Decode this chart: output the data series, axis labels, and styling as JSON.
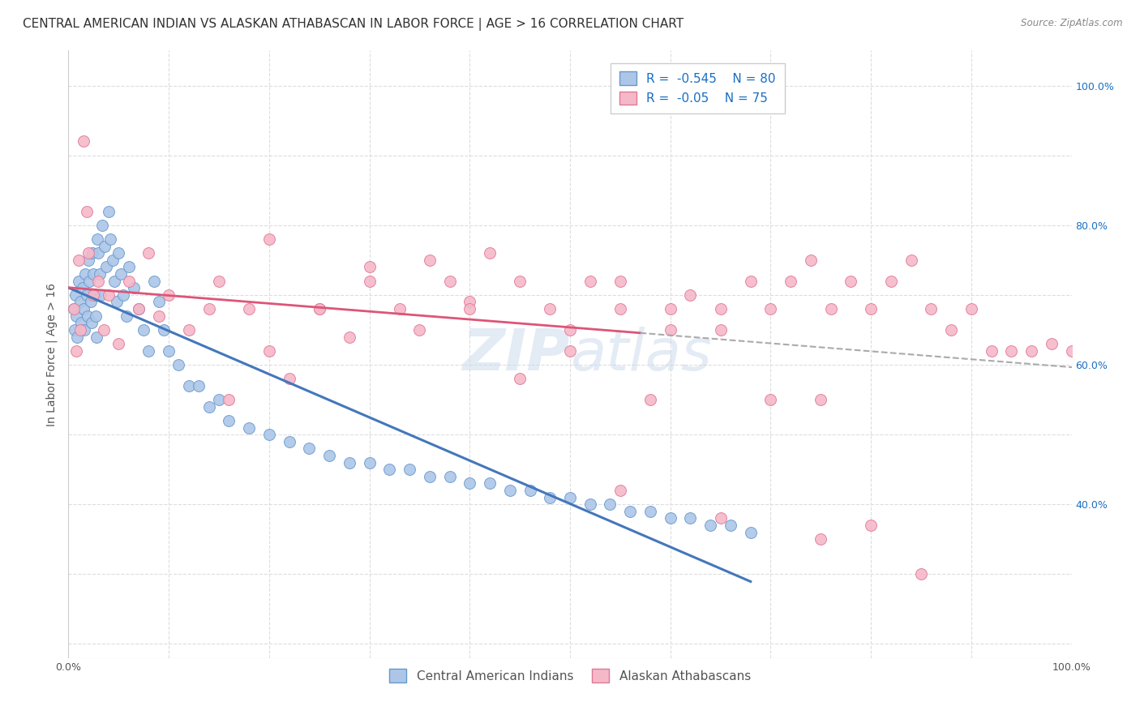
{
  "title": "CENTRAL AMERICAN INDIAN VS ALASKAN ATHABASCAN IN LABOR FORCE | AGE > 16 CORRELATION CHART",
  "source": "Source: ZipAtlas.com",
  "ylabel": "In Labor Force | Age > 16",
  "xlim": [
    0.0,
    1.0
  ],
  "ylim": [
    0.18,
    1.05
  ],
  "R_blue": -0.545,
  "N_blue": 80,
  "R_pink": -0.05,
  "N_pink": 75,
  "color_blue_fill": "#adc6e8",
  "color_blue_edge": "#6699cc",
  "color_pink_fill": "#f5b8c8",
  "color_pink_edge": "#e07898",
  "color_blue_line": "#4477bb",
  "color_pink_line": "#dd5577",
  "color_dash_line": "#aaaaaa",
  "watermark": "ZIPatlas",
  "background_color": "#ffffff",
  "grid_color": "#dddddd",
  "title_fontsize": 11,
  "axis_fontsize": 10,
  "tick_fontsize": 9,
  "legend_fontsize": 11,
  "blue_x": [
    0.005,
    0.006,
    0.007,
    0.008,
    0.009,
    0.01,
    0.012,
    0.013,
    0.014,
    0.015,
    0.016,
    0.017,
    0.018,
    0.019,
    0.02,
    0.021,
    0.022,
    0.023,
    0.024,
    0.025,
    0.026,
    0.027,
    0.028,
    0.029,
    0.03,
    0.031,
    0.032,
    0.034,
    0.036,
    0.038,
    0.04,
    0.042,
    0.044,
    0.046,
    0.048,
    0.05,
    0.052,
    0.055,
    0.058,
    0.06,
    0.065,
    0.07,
    0.075,
    0.08,
    0.085,
    0.09,
    0.095,
    0.1,
    0.11,
    0.12,
    0.13,
    0.14,
    0.15,
    0.16,
    0.18,
    0.2,
    0.22,
    0.24,
    0.26,
    0.28,
    0.3,
    0.32,
    0.34,
    0.36,
    0.38,
    0.4,
    0.42,
    0.44,
    0.46,
    0.48,
    0.5,
    0.52,
    0.54,
    0.56,
    0.58,
    0.6,
    0.62,
    0.64,
    0.66,
    0.68
  ],
  "blue_y": [
    0.68,
    0.65,
    0.7,
    0.67,
    0.64,
    0.72,
    0.69,
    0.66,
    0.71,
    0.68,
    0.65,
    0.73,
    0.7,
    0.67,
    0.75,
    0.72,
    0.69,
    0.66,
    0.76,
    0.73,
    0.7,
    0.67,
    0.64,
    0.78,
    0.76,
    0.73,
    0.7,
    0.8,
    0.77,
    0.74,
    0.82,
    0.78,
    0.75,
    0.72,
    0.69,
    0.76,
    0.73,
    0.7,
    0.67,
    0.74,
    0.71,
    0.68,
    0.65,
    0.62,
    0.72,
    0.69,
    0.65,
    0.62,
    0.6,
    0.57,
    0.57,
    0.54,
    0.55,
    0.52,
    0.51,
    0.5,
    0.49,
    0.48,
    0.47,
    0.46,
    0.46,
    0.45,
    0.45,
    0.44,
    0.44,
    0.43,
    0.43,
    0.42,
    0.42,
    0.41,
    0.41,
    0.4,
    0.4,
    0.39,
    0.39,
    0.38,
    0.38,
    0.37,
    0.37,
    0.36
  ],
  "pink_x": [
    0.005,
    0.008,
    0.01,
    0.012,
    0.015,
    0.018,
    0.02,
    0.025,
    0.03,
    0.035,
    0.04,
    0.05,
    0.06,
    0.07,
    0.08,
    0.09,
    0.1,
    0.12,
    0.14,
    0.16,
    0.18,
    0.2,
    0.22,
    0.25,
    0.28,
    0.3,
    0.33,
    0.36,
    0.38,
    0.4,
    0.42,
    0.45,
    0.48,
    0.5,
    0.52,
    0.55,
    0.58,
    0.6,
    0.62,
    0.65,
    0.68,
    0.7,
    0.72,
    0.74,
    0.76,
    0.78,
    0.8,
    0.82,
    0.84,
    0.86,
    0.88,
    0.9,
    0.92,
    0.94,
    0.96,
    0.98,
    1.0,
    0.15,
    0.25,
    0.35,
    0.45,
    0.55,
    0.65,
    0.75,
    0.2,
    0.3,
    0.4,
    0.5,
    0.6,
    0.7,
    0.8,
    0.55,
    0.65,
    0.75,
    0.85
  ],
  "pink_y": [
    0.68,
    0.62,
    0.75,
    0.65,
    0.92,
    0.82,
    0.76,
    0.7,
    0.72,
    0.65,
    0.7,
    0.63,
    0.72,
    0.68,
    0.76,
    0.67,
    0.7,
    0.65,
    0.68,
    0.55,
    0.68,
    0.62,
    0.58,
    0.68,
    0.64,
    0.72,
    0.68,
    0.75,
    0.72,
    0.69,
    0.76,
    0.72,
    0.68,
    0.65,
    0.72,
    0.68,
    0.55,
    0.65,
    0.7,
    0.68,
    0.72,
    0.68,
    0.72,
    0.75,
    0.68,
    0.72,
    0.68,
    0.72,
    0.75,
    0.68,
    0.65,
    0.68,
    0.62,
    0.62,
    0.62,
    0.63,
    0.62,
    0.72,
    0.68,
    0.65,
    0.58,
    0.72,
    0.65,
    0.55,
    0.78,
    0.74,
    0.68,
    0.62,
    0.68,
    0.55,
    0.37,
    0.42,
    0.38,
    0.35,
    0.3
  ]
}
